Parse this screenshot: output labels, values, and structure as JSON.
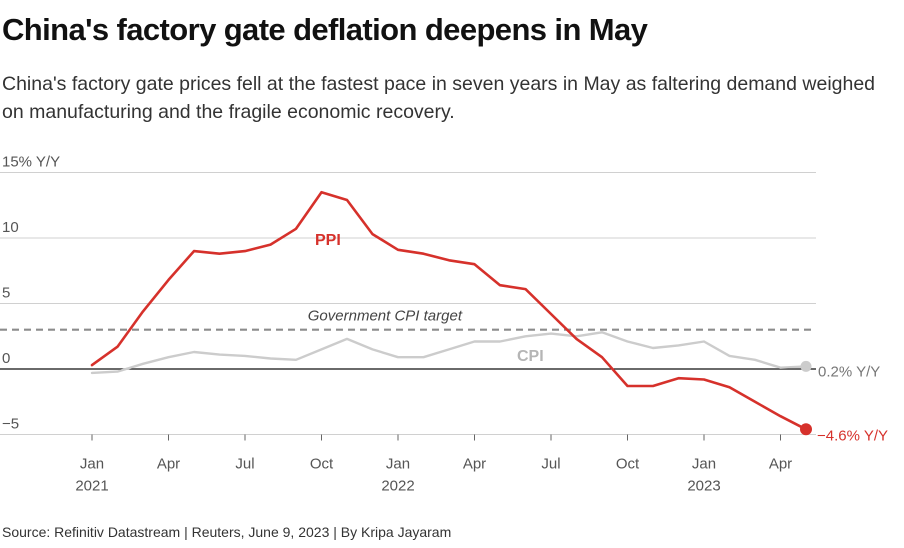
{
  "title": "China's factory gate deflation deepens in May",
  "subtitle": "China's factory gate prices fell at the fastest pace in seven years in May as faltering demand weighed on manufacturing and the fragile economic recovery.",
  "source": "Source: Refinitiv Datastream | Reuters, June 9, 2023 | By Kripa Jayaram",
  "colors": {
    "ppi": "#d6312b",
    "cpi": "#cccccc",
    "target": "#8c8c8c",
    "grid": "#d0d0d0",
    "zero": "#111111",
    "text": "#555555"
  },
  "chart_data": {
    "type": "line",
    "title": "China's factory gate deflation deepens in May",
    "ylabel": "15% Y/Y",
    "ylim": [
      -5,
      15
    ],
    "yticks": [
      {
        "value": -5,
        "label": "−5"
      },
      {
        "value": 0,
        "label": "0"
      },
      {
        "value": 5,
        "label": "5"
      },
      {
        "value": 10,
        "label": "10"
      },
      {
        "value": 15,
        "label": "15% Y/Y"
      }
    ],
    "xticks": [
      {
        "index": 0,
        "label": "Jan",
        "year": "2021"
      },
      {
        "index": 3,
        "label": "Apr",
        "year": ""
      },
      {
        "index": 6,
        "label": "Jul",
        "year": ""
      },
      {
        "index": 9,
        "label": "Oct",
        "year": ""
      },
      {
        "index": 12,
        "label": "Jan",
        "year": "2022"
      },
      {
        "index": 15,
        "label": "Apr",
        "year": ""
      },
      {
        "index": 18,
        "label": "Jul",
        "year": ""
      },
      {
        "index": 21,
        "label": "Oct",
        "year": ""
      },
      {
        "index": 24,
        "label": "Jan",
        "year": "2023"
      },
      {
        "index": 27,
        "label": "Apr",
        "year": ""
      }
    ],
    "x_range": [
      -0.5,
      28.5
    ],
    "months": [
      "2021-01",
      "2021-02",
      "2021-03",
      "2021-04",
      "2021-05",
      "2021-06",
      "2021-07",
      "2021-08",
      "2021-09",
      "2021-10",
      "2021-11",
      "2021-12",
      "2022-01",
      "2022-02",
      "2022-03",
      "2022-04",
      "2022-05",
      "2022-06",
      "2022-07",
      "2022-08",
      "2022-09",
      "2022-10",
      "2022-11",
      "2022-12",
      "2023-01",
      "2023-02",
      "2023-03",
      "2023-04",
      "2023-05"
    ],
    "series": [
      {
        "name": "PPI",
        "label": "PPI",
        "values": [
          0.3,
          1.7,
          4.4,
          6.8,
          9.0,
          8.8,
          9.0,
          9.5,
          10.7,
          13.5,
          12.9,
          10.3,
          9.1,
          8.8,
          8.3,
          8.0,
          6.4,
          6.1,
          4.2,
          2.3,
          0.9,
          -1.3,
          -1.3,
          -0.7,
          -0.8,
          -1.4,
          -2.5,
          -3.6,
          -4.6
        ],
        "end_label": "−4.6% Y/Y"
      },
      {
        "name": "CPI",
        "label": "CPI",
        "values": [
          -0.3,
          -0.2,
          0.4,
          0.9,
          1.3,
          1.1,
          1.0,
          0.8,
          0.7,
          1.5,
          2.3,
          1.5,
          0.9,
          0.9,
          1.5,
          2.1,
          2.1,
          2.5,
          2.7,
          2.5,
          2.8,
          2.1,
          1.6,
          1.8,
          2.1,
          1.0,
          0.7,
          0.1,
          0.2
        ],
        "end_label": "0.2% Y/Y"
      }
    ],
    "reference_line": {
      "label": "Government CPI target",
      "value": 3.0
    }
  }
}
